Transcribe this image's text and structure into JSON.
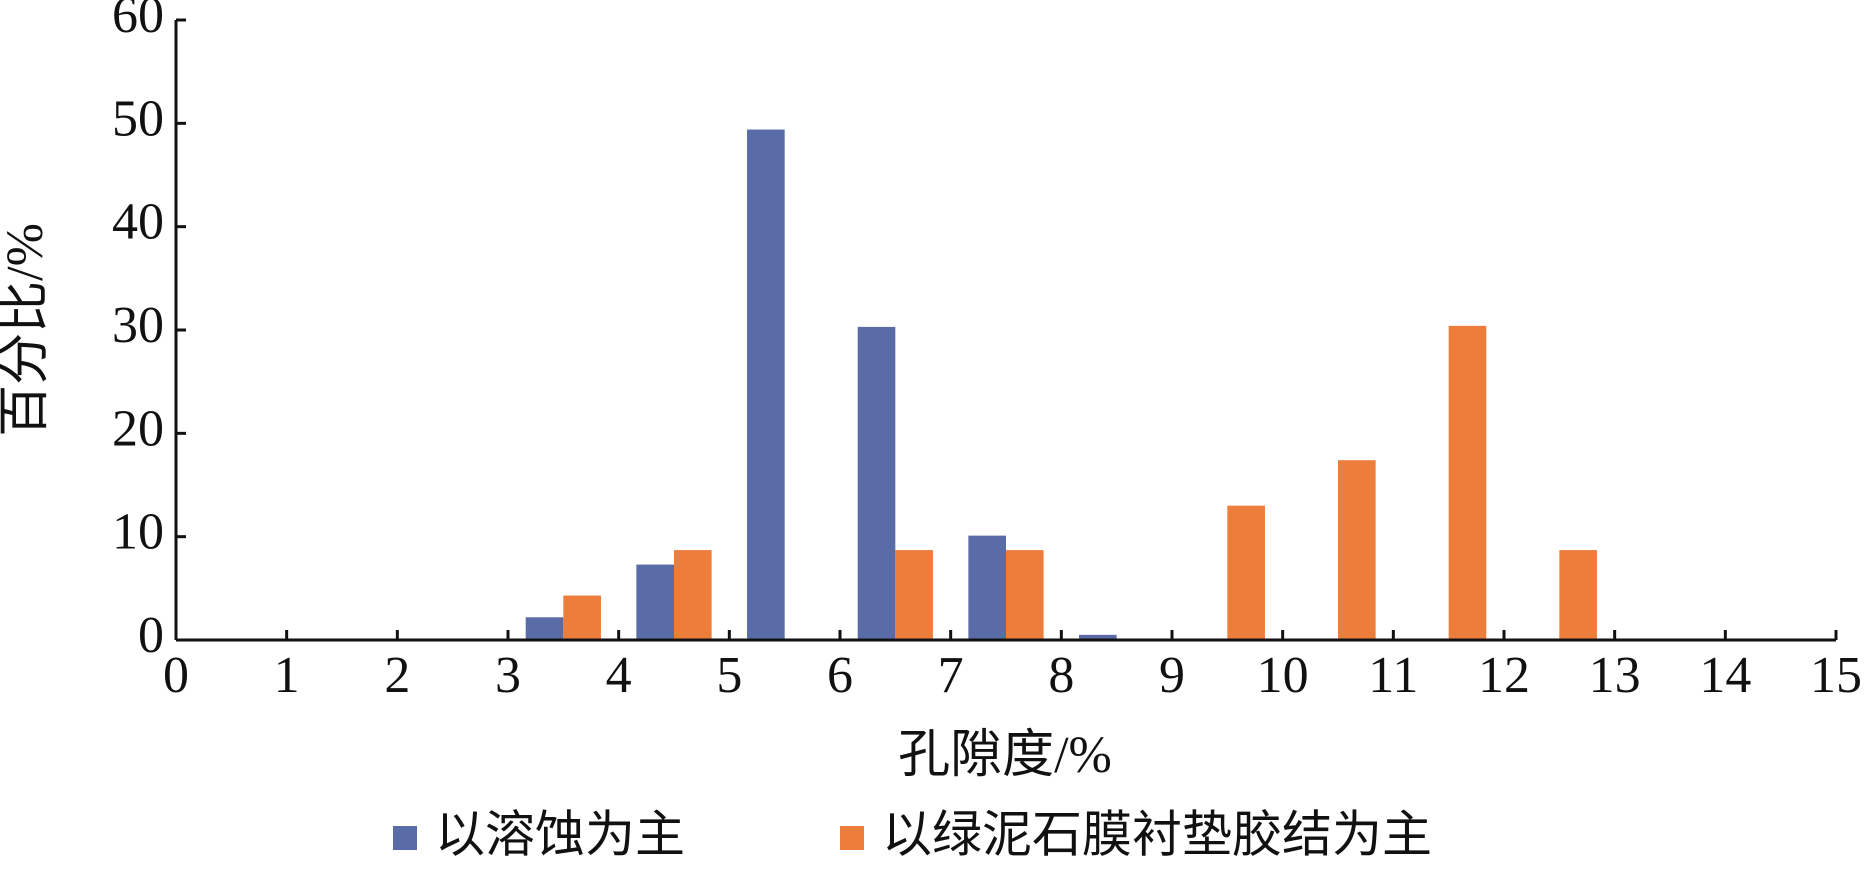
{
  "chart_data": {
    "type": "histogram",
    "x_label": "孔隙度/%",
    "y_label": "百分比/%",
    "bins": [
      0,
      1,
      2,
      3,
      4,
      5,
      6,
      7,
      8,
      9,
      10,
      11,
      12,
      13,
      14,
      15
    ],
    "series": [
      {
        "name": "以溶蚀为主",
        "color": "#5a6ca8",
        "values": [
          0,
          0,
          0,
          2.2,
          7.3,
          49.4,
          30.3,
          10.1,
          0.5,
          0,
          0,
          0,
          0,
          0,
          0
        ]
      },
      {
        "name": "以绿泥石膜衬垫胶结为主",
        "color": "#ed7d3a",
        "values": [
          0,
          0,
          0,
          4.3,
          8.7,
          0,
          8.7,
          8.7,
          0,
          13.0,
          17.4,
          30.4,
          8.7,
          0,
          0
        ]
      }
    ],
    "xlim": [
      0,
      15
    ],
    "xticks": [
      0,
      1,
      2,
      3,
      4,
      5,
      6,
      7,
      8,
      9,
      10,
      11,
      12,
      13,
      14,
      15
    ],
    "ylim": [
      0,
      60
    ],
    "yticks": [
      0,
      10,
      20,
      30,
      40,
      50,
      60
    ],
    "grid": false
  }
}
